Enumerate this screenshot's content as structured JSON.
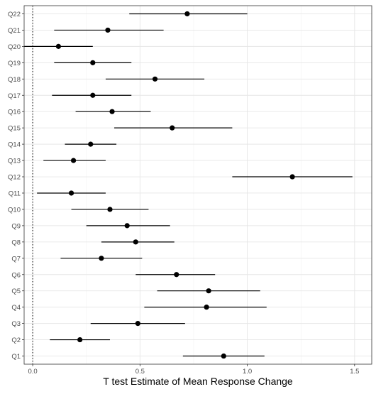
{
  "chart_data": {
    "type": "scatter",
    "subtype": "forest-plot",
    "title": "",
    "xlabel": "T test Estimate of Mean Response Change",
    "ylabel": "",
    "xlim": [
      -0.04,
      1.58
    ],
    "x_ticks": [
      0.0,
      0.5,
      1.0,
      1.5
    ],
    "x_tick_labels": [
      "0.0",
      "0.5",
      "1.0",
      "1.5"
    ],
    "reference_line": {
      "x": 0,
      "style": "dotted"
    },
    "grid": true,
    "panel_border": true,
    "categories": [
      "Q22",
      "Q21",
      "Q20",
      "Q19",
      "Q18",
      "Q17",
      "Q16",
      "Q15",
      "Q14",
      "Q13",
      "Q12",
      "Q11",
      "Q10",
      "Q9",
      "Q8",
      "Q7",
      "Q6",
      "Q5",
      "Q4",
      "Q3",
      "Q2",
      "Q1"
    ],
    "estimates": [
      0.72,
      0.35,
      0.12,
      0.28,
      0.57,
      0.28,
      0.37,
      0.65,
      0.27,
      0.19,
      1.21,
      0.18,
      0.36,
      0.44,
      0.48,
      0.32,
      0.67,
      0.82,
      0.81,
      0.49,
      0.22,
      0.89
    ],
    "ci_low": [
      0.45,
      0.1,
      -0.04,
      0.1,
      0.34,
      0.09,
      0.2,
      0.38,
      0.15,
      0.05,
      0.93,
      0.02,
      0.18,
      0.25,
      0.32,
      0.13,
      0.48,
      0.58,
      0.52,
      0.27,
      0.08,
      0.7
    ],
    "ci_high": [
      1.0,
      0.61,
      0.28,
      0.46,
      0.8,
      0.46,
      0.55,
      0.93,
      0.39,
      0.34,
      1.49,
      0.34,
      0.54,
      0.64,
      0.66,
      0.51,
      0.85,
      1.06,
      1.09,
      0.71,
      0.36,
      1.08
    ]
  }
}
